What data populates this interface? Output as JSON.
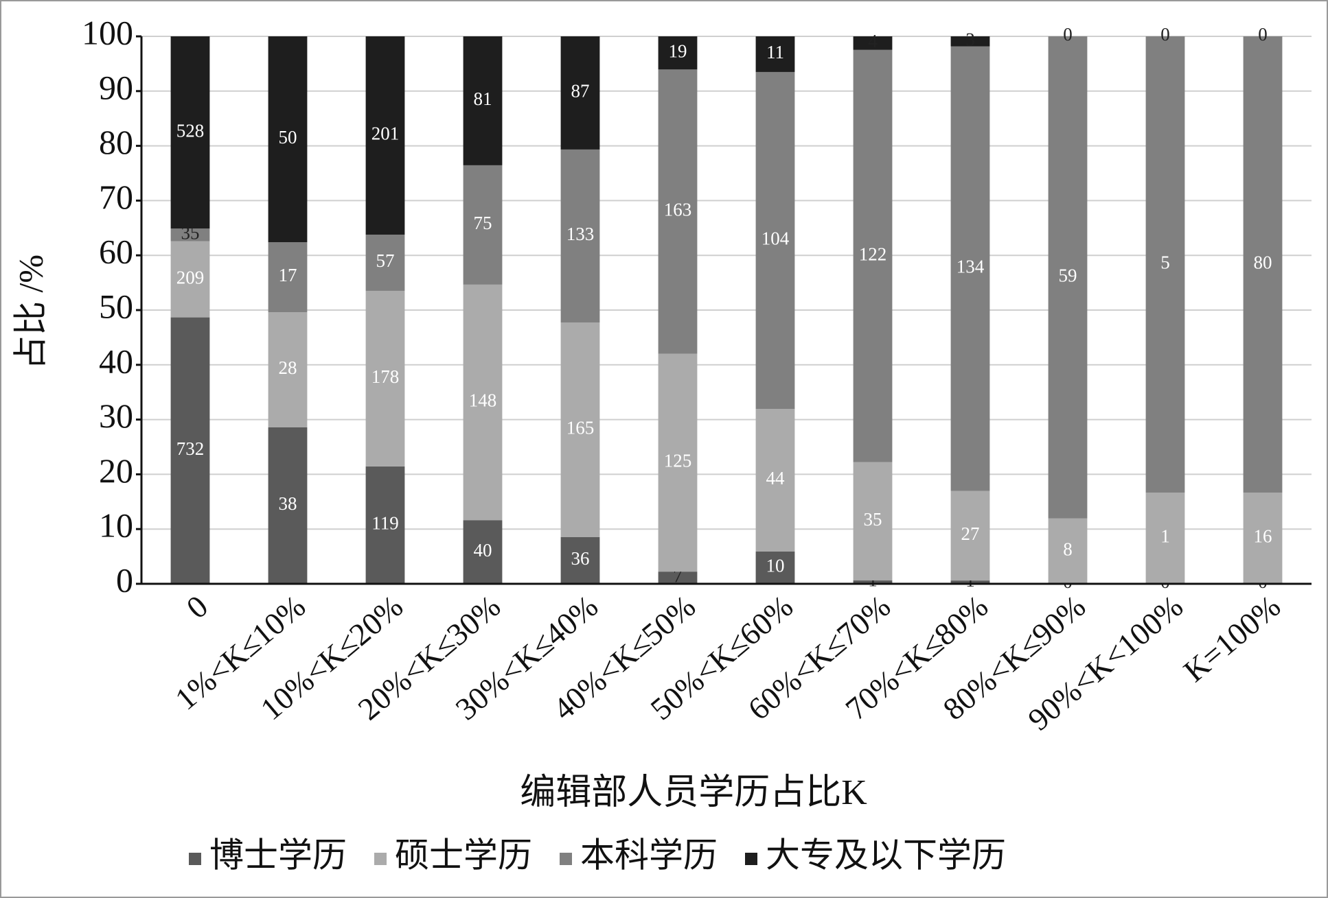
{
  "chart_data": {
    "type": "bar",
    "stacking": "percent",
    "x_label": "编辑部人员学历占比K",
    "y_label": "占比 /%",
    "categories": [
      "0",
      "1%<K≤10%",
      "10%<K≤20%",
      "20%<K≤30%",
      "30%<K≤40%",
      "40%<K≤50%",
      "50%<K≤60%",
      "60%<K≤70%",
      "70%<K≤80%",
      "80%<K≤90%",
      "90%<K<100%",
      "K=100%"
    ],
    "series": [
      {
        "name": "博士学历",
        "color": "#5a5a5a",
        "values": [
          732,
          38,
          119,
          40,
          36,
          7,
          10,
          1,
          1,
          0,
          0,
          0
        ]
      },
      {
        "name": "硕士学历",
        "color": "#ababab",
        "values": [
          209,
          28,
          178,
          148,
          165,
          125,
          44,
          35,
          27,
          8,
          1,
          16
        ]
      },
      {
        "name": "本科学历",
        "color": "#808080",
        "values": [
          35,
          17,
          57,
          75,
          133,
          163,
          104,
          122,
          134,
          59,
          5,
          80
        ]
      },
      {
        "name": "大专及以下学历",
        "color": "#1e1e1e",
        "values": [
          528,
          50,
          201,
          81,
          87,
          19,
          11,
          4,
          3,
          0,
          0,
          0
        ]
      }
    ],
    "ylim": [
      0,
      100
    ],
    "yticks": [
      0,
      10,
      20,
      30,
      40,
      50,
      60,
      70,
      80,
      90,
      100
    ],
    "grid": true,
    "legend": "bottom"
  }
}
